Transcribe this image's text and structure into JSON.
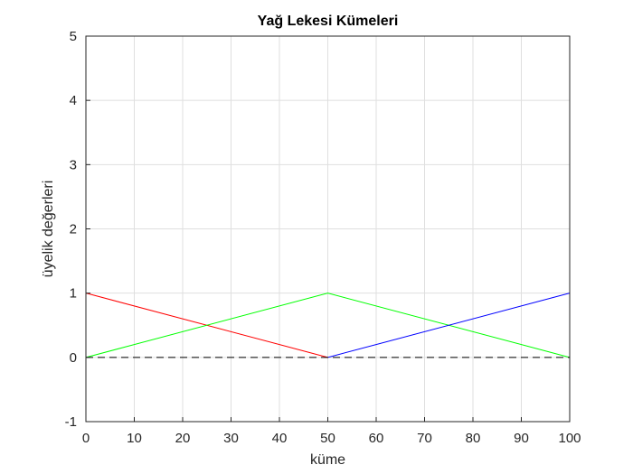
{
  "chart_data": {
    "type": "line",
    "title": "Yağ Lekesi Kümeleri",
    "xlabel": "küme",
    "ylabel": "üyelik değerleri",
    "xlim": [
      0,
      100
    ],
    "ylim": [
      -1,
      5
    ],
    "xticks": [
      "0",
      "10",
      "20",
      "30",
      "40",
      "50",
      "60",
      "70",
      "80",
      "90",
      "100"
    ],
    "yticks": [
      "-1",
      "0",
      "1",
      "2",
      "3",
      "4",
      "5"
    ],
    "grid": true,
    "series": [
      {
        "x": [
          0,
          50
        ],
        "y": [
          1,
          0
        ],
        "color": "#ff0000",
        "style": "solid"
      },
      {
        "x": [
          0,
          50,
          100
        ],
        "y": [
          0,
          1,
          0
        ],
        "color": "#00ff00",
        "style": "solid"
      },
      {
        "x": [
          50,
          100
        ],
        "y": [
          0,
          1
        ],
        "color": "#0000ff",
        "style": "solid"
      },
      {
        "x": [
          0,
          100
        ],
        "y": [
          0,
          0
        ],
        "color": "#000000",
        "style": "dashed"
      }
    ]
  }
}
